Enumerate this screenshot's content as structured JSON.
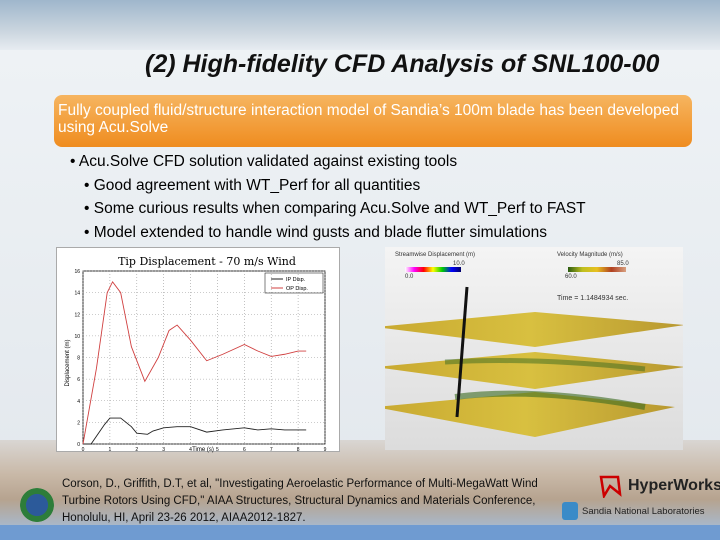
{
  "slide": {
    "title": "(2) High-fidelity CFD Analysis of SNL100-00",
    "banner": "Fully coupled fluid/structure interaction model of Sandia’s 100m blade has been developed using Acu.Solve",
    "bullets": [
      {
        "level": 1,
        "text": "• Acu.Solve CFD solution validated against existing tools"
      },
      {
        "level": 2,
        "text": "• Good agreement with WT_Perf for all quantities"
      },
      {
        "level": 2,
        "text": "• Some curious results when comparing Acu.Solve and WT_Perf to FAST"
      },
      {
        "level": 2,
        "text": "• Model extended to handle wind gusts and blade flutter simulations"
      }
    ],
    "citation": "Corson, D., Griffith, D.T, et al, \"Investigating Aeroelastic Performance of Multi-MegaWatt Wind Turbine Rotors Using CFD,\" AIAA Structures, Structural Dynamics and Materials Conference, Honolulu, HI, April 23-26 2012, AIAA2012-1827.",
    "logos": {
      "hyperworks": "HyperWorks",
      "sandia": "Sandia National Laboratories"
    }
  },
  "cfd": {
    "legend1_title": "Streamwise Displacement (m)",
    "legend1_min": "0.0",
    "legend1_max": "10.0",
    "legend2_title": "Velocity Magnitude (m/s)",
    "legend2_min": "60.0",
    "legend2_max": "85.0",
    "time": "Time = 1.1484934 sec."
  },
  "chart_data": {
    "type": "line",
    "title": "Tip Displacement - 70 m/s Wind",
    "xlabel": "Time (s)",
    "ylabel": "Displacement (m)",
    "xlim": [
      0,
      9
    ],
    "ylim": [
      0,
      16
    ],
    "xticks": [
      "0",
      "1",
      "2",
      "3",
      "4",
      "5",
      "6",
      "7",
      "8",
      "9"
    ],
    "yticks": [
      "0",
      "2",
      "4",
      "6",
      "8",
      "10",
      "12",
      "14",
      "16"
    ],
    "grid": true,
    "legend_position": "top-right",
    "series": [
      {
        "name": "IP Disp.",
        "color": "#222222",
        "x": [
          0,
          0.3,
          0.8,
          1,
          1.4,
          1.8,
          2,
          2.4,
          2.6,
          3,
          3.5,
          4,
          4.6,
          5.2,
          6,
          6.5,
          7,
          7.5,
          8.3
        ],
        "y": [
          0,
          0,
          1.8,
          2.4,
          2.4,
          1.6,
          1,
          0.9,
          1.2,
          1.5,
          1.6,
          1.6,
          1.1,
          1.3,
          1.5,
          1.3,
          1.4,
          1.3,
          1.3
        ]
      },
      {
        "name": "OP Disp.",
        "color": "#d04040",
        "x": [
          0,
          0.5,
          0.9,
          1.1,
          1.4,
          1.8,
          2.3,
          2.8,
          3.2,
          3.5,
          4,
          4.6,
          5.2,
          6,
          6.5,
          7,
          7.5,
          8,
          8.3
        ],
        "y": [
          0,
          7,
          14,
          15,
          14,
          9,
          5.8,
          8,
          10.5,
          11,
          9.6,
          7.7,
          8.3,
          9.2,
          8.6,
          8.1,
          8.3,
          8.6,
          8.6
        ]
      }
    ]
  }
}
